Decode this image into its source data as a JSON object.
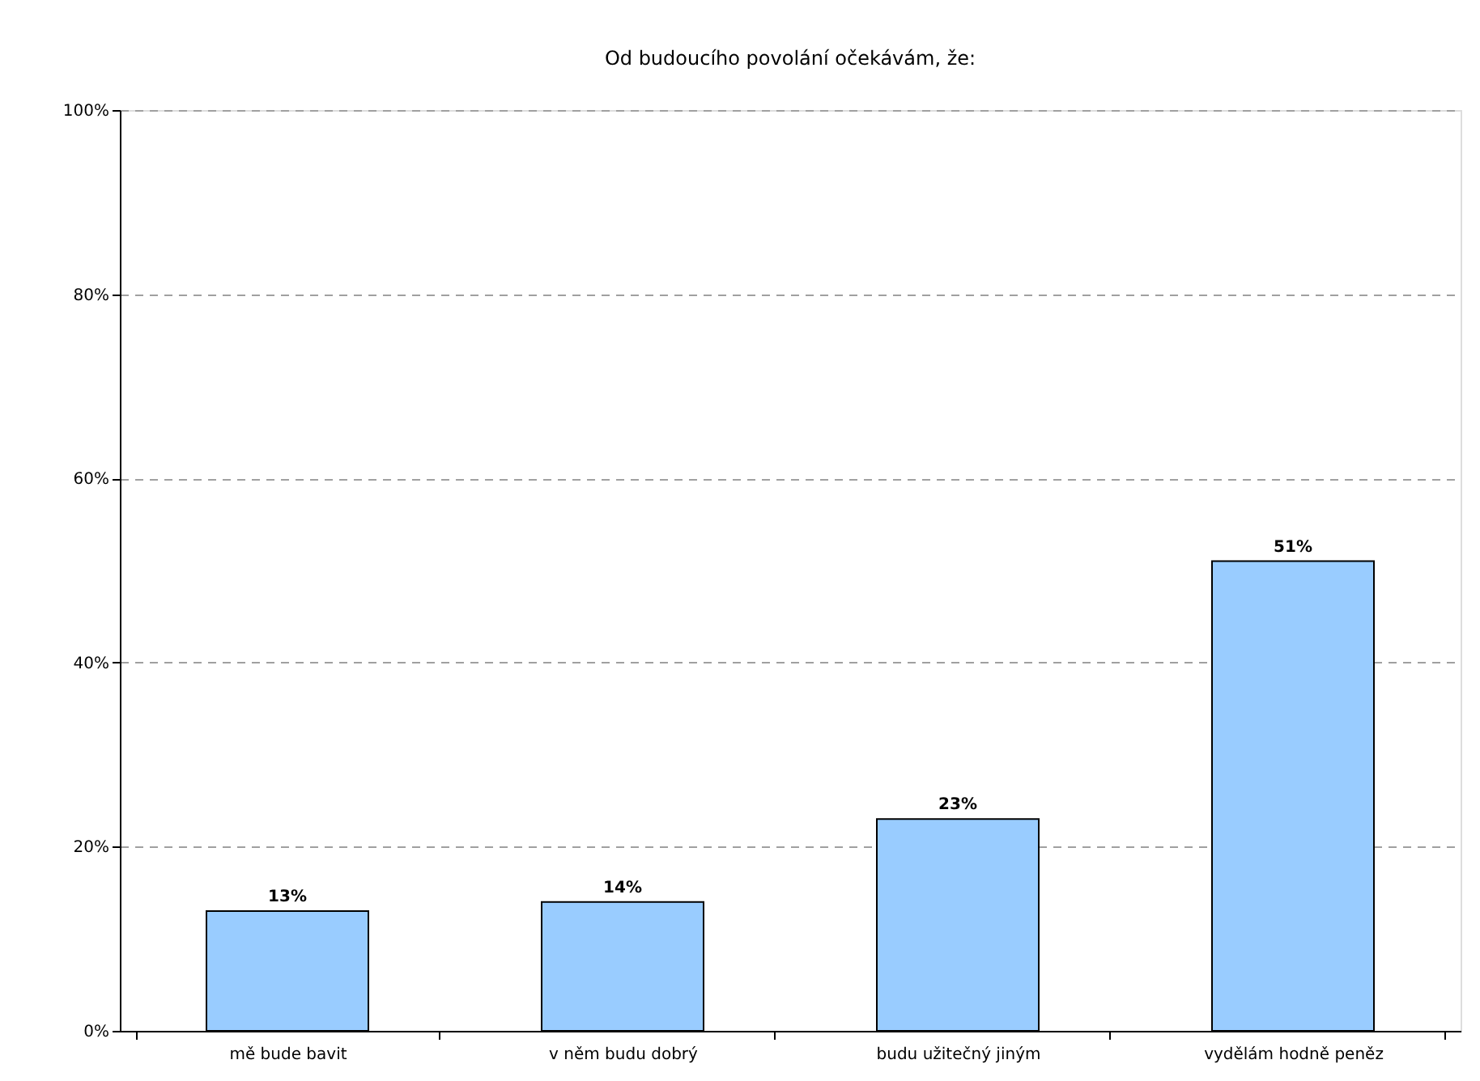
{
  "chart_data": {
    "type": "bar",
    "title": "Od budoucího povolání očekávám, že:",
    "categories": [
      "mě bude bavit",
      "v něm budu dobrý",
      "budu užitečný jiným",
      "vydělám hodně peněz"
    ],
    "values": [
      13,
      14,
      23,
      51
    ],
    "value_labels": [
      "13%",
      "14%",
      "23%",
      "51%"
    ],
    "color": "#99ccff",
    "ylim": [
      0,
      100
    ],
    "yticks": [
      {
        "value": 0,
        "label": "0%"
      },
      {
        "value": 20,
        "label": "20%"
      },
      {
        "value": 40,
        "label": "40%"
      },
      {
        "value": 60,
        "label": "60%"
      },
      {
        "value": 80,
        "label": "80%"
      },
      {
        "value": 100,
        "label": "100%"
      }
    ],
    "grid": "y"
  }
}
